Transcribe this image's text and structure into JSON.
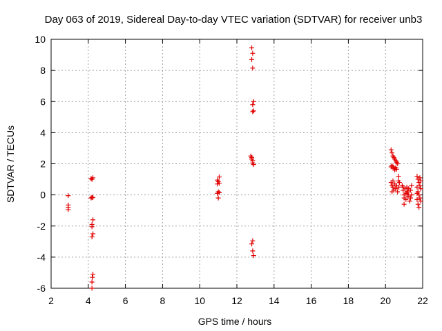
{
  "chart_data": {
    "type": "scatter",
    "title": "Day 063 of 2019, Sidereal Day-to-day VTEC variation (SDTVAR) for receiver unb3",
    "xlabel": "GPS time / hours",
    "ylabel": "SDTVAR / TECUs",
    "xlim": [
      2,
      22
    ],
    "ylim": [
      -6,
      10
    ],
    "xticks": [
      "2",
      "4",
      "6",
      "8",
      "10",
      "12",
      "14",
      "16",
      "18",
      "20",
      "22"
    ],
    "yticks": [
      "-6",
      "-4",
      "-2",
      "0",
      "2",
      "4",
      "6",
      "8",
      "10"
    ],
    "grid": true,
    "marker": "+",
    "color": "#e00000",
    "series": [
      {
        "name": "SDTVAR",
        "points": [
          [
            2.92,
            -0.05
          ],
          [
            2.92,
            -0.65
          ],
          [
            2.92,
            -0.8
          ],
          [
            2.92,
            -0.95
          ],
          [
            4.15,
            1.05
          ],
          [
            4.2,
            1.0
          ],
          [
            4.25,
            1.1
          ],
          [
            4.2,
            -0.15
          ],
          [
            4.15,
            -0.2
          ],
          [
            4.25,
            -0.18
          ],
          [
            4.25,
            -1.6
          ],
          [
            4.2,
            -1.9
          ],
          [
            4.2,
            -2.05
          ],
          [
            4.25,
            -2.5
          ],
          [
            4.2,
            -2.7
          ],
          [
            4.25,
            -5.1
          ],
          [
            4.22,
            -5.3
          ],
          [
            4.2,
            -5.6
          ],
          [
            4.2,
            -6.0
          ],
          [
            10.95,
            0.95
          ],
          [
            11.05,
            1.15
          ],
          [
            11.0,
            0.85
          ],
          [
            10.95,
            0.7
          ],
          [
            11.05,
            0.75
          ],
          [
            11.0,
            0.2
          ],
          [
            11.05,
            0.15
          ],
          [
            10.95,
            0.1
          ],
          [
            11.0,
            -0.2
          ],
          [
            12.8,
            9.45
          ],
          [
            12.85,
            9.1
          ],
          [
            12.8,
            8.7
          ],
          [
            12.85,
            8.15
          ],
          [
            12.9,
            6.0
          ],
          [
            12.85,
            5.8
          ],
          [
            12.9,
            5.4
          ],
          [
            12.85,
            5.35
          ],
          [
            12.75,
            2.5
          ],
          [
            12.8,
            2.3
          ],
          [
            12.85,
            2.2
          ],
          [
            12.8,
            2.4
          ],
          [
            12.85,
            2.05
          ],
          [
            12.9,
            1.95
          ],
          [
            12.85,
            -2.95
          ],
          [
            12.8,
            -3.15
          ],
          [
            12.85,
            -3.6
          ],
          [
            12.9,
            -3.9
          ],
          [
            20.3,
            2.9
          ],
          [
            20.35,
            2.7
          ],
          [
            20.4,
            2.5
          ],
          [
            20.45,
            2.4
          ],
          [
            20.5,
            2.3
          ],
          [
            20.55,
            2.2
          ],
          [
            20.6,
            2.1
          ],
          [
            20.65,
            2.0
          ],
          [
            20.4,
            1.8
          ],
          [
            20.45,
            1.7
          ],
          [
            20.5,
            1.6
          ],
          [
            20.55,
            1.75
          ],
          [
            20.6,
            1.65
          ],
          [
            20.3,
            1.8
          ],
          [
            20.35,
            1.9
          ],
          [
            20.3,
            0.8
          ],
          [
            20.35,
            0.6
          ],
          [
            20.4,
            0.5
          ],
          [
            20.45,
            0.3
          ],
          [
            20.35,
            0.2
          ],
          [
            20.4,
            0.9
          ],
          [
            20.5,
            0.7
          ],
          [
            20.55,
            0.4
          ],
          [
            20.6,
            0.6
          ],
          [
            20.65,
            0.2
          ],
          [
            20.7,
            1.2
          ],
          [
            20.7,
            0.9
          ],
          [
            20.72,
            0.5
          ],
          [
            20.75,
            0.8
          ],
          [
            20.9,
            0.6
          ],
          [
            20.95,
            0.3
          ],
          [
            21.0,
            0.0
          ],
          [
            21.0,
            -0.2
          ],
          [
            21.05,
            0.4
          ],
          [
            21.1,
            0.1
          ],
          [
            21.1,
            -0.3
          ],
          [
            21.15,
            0.5
          ],
          [
            21.2,
            0.2
          ],
          [
            21.2,
            -0.1
          ],
          [
            21.25,
            0.0
          ],
          [
            21.3,
            -0.4
          ],
          [
            21.35,
            0.3
          ],
          [
            21.4,
            0.6
          ],
          [
            21.35,
            -0.2
          ],
          [
            21.0,
            -0.6
          ],
          [
            20.95,
            0.5
          ],
          [
            21.15,
            0.2
          ],
          [
            21.25,
            0.4
          ],
          [
            21.4,
            0.0
          ],
          [
            21.7,
            1.2
          ],
          [
            21.75,
            1.0
          ],
          [
            21.8,
            0.8
          ],
          [
            21.85,
            0.6
          ],
          [
            21.9,
            0.4
          ],
          [
            21.75,
            0.2
          ],
          [
            21.8,
            0.0
          ],
          [
            21.85,
            -0.2
          ],
          [
            21.9,
            -0.4
          ],
          [
            21.75,
            -0.6
          ],
          [
            21.8,
            -0.8
          ],
          [
            21.7,
            0.5
          ],
          [
            21.7,
            -0.3
          ],
          [
            21.85,
            1.1
          ],
          [
            21.9,
            0.9
          ],
          [
            21.7,
            0.1
          ]
        ]
      }
    ]
  }
}
